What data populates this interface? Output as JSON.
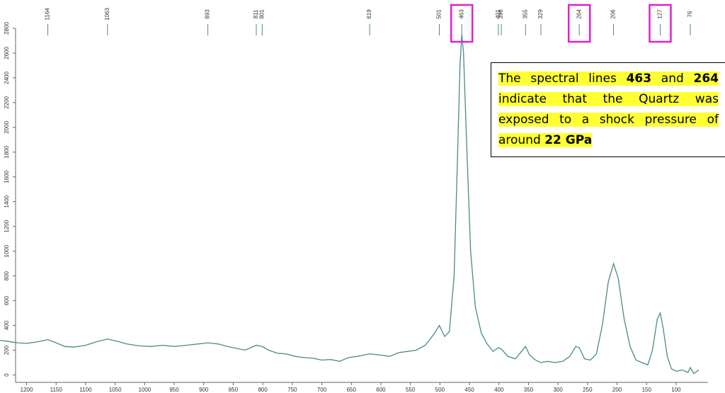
{
  "chart_data": {
    "type": "line",
    "x": [
      1245,
      1230,
      1215,
      1200,
      1185,
      1164,
      1150,
      1135,
      1120,
      1100,
      1080,
      1063,
      1045,
      1030,
      1010,
      990,
      970,
      950,
      930,
      910,
      893,
      875,
      860,
      845,
      830,
      811,
      801,
      790,
      775,
      760,
      745,
      730,
      715,
      700,
      685,
      670,
      655,
      640,
      619,
      600,
      585,
      570,
      555,
      540,
      525,
      510,
      501,
      492,
      484,
      476,
      470,
      466,
      463,
      460,
      455,
      448,
      440,
      430,
      420,
      410,
      401,
      396,
      385,
      372,
      362,
      355,
      348,
      338,
      329,
      318,
      305,
      292,
      280,
      270,
      264,
      255,
      245,
      235,
      225,
      215,
      206,
      198,
      188,
      178,
      168,
      158,
      148,
      140,
      132,
      127,
      122,
      115,
      108,
      100,
      90,
      80,
      76,
      70,
      62
    ],
    "series": [
      {
        "color": "#4a8a8a",
        "values": [
          280,
          270,
          260,
          255,
          265,
          285,
          260,
          230,
          225,
          240,
          270,
          290,
          270,
          250,
          235,
          230,
          240,
          230,
          240,
          250,
          260,
          250,
          230,
          215,
          200,
          240,
          230,
          200,
          175,
          170,
          150,
          140,
          135,
          120,
          125,
          110,
          140,
          150,
          170,
          160,
          150,
          180,
          190,
          200,
          240,
          330,
          400,
          310,
          350,
          800,
          1800,
          2500,
          2750,
          2600,
          1900,
          1000,
          550,
          340,
          250,
          190,
          220,
          210,
          150,
          130,
          190,
          230,
          160,
          120,
          100,
          110,
          100,
          110,
          150,
          230,
          220,
          130,
          120,
          170,
          400,
          750,
          900,
          780,
          450,
          230,
          120,
          100,
          80,
          200,
          450,
          500,
          380,
          150,
          50,
          30,
          40,
          20,
          60,
          10,
          40
        ]
      }
    ],
    "xlim": [
      1245,
      58
    ],
    "ylim": [
      -60,
      2800
    ],
    "xticks": [
      1200,
      1150,
      1100,
      1050,
      1000,
      950,
      900,
      850,
      800,
      750,
      700,
      650,
      600,
      550,
      500,
      450,
      400,
      350,
      300,
      250,
      200,
      150,
      100
    ],
    "yticks": [
      0,
      200,
      400,
      600,
      800,
      1000,
      1200,
      1400,
      1600,
      1800,
      2000,
      2200,
      2400,
      2600,
      2800
    ],
    "peaks": [
      1164,
      1063,
      893,
      811,
      801,
      619,
      501,
      463,
      401,
      396,
      355,
      329,
      264,
      206,
      127,
      76
    ],
    "boxed": [
      false,
      false,
      false,
      false,
      false,
      false,
      false,
      true,
      false,
      false,
      false,
      false,
      true,
      false,
      true,
      false
    ],
    "box_color": "#e020d0",
    "annotation": [
      {
        "text": "The spectral lines ",
        "bold": false
      },
      {
        "text": "463",
        "bold": true
      },
      {
        "text": " and ",
        "bold": false
      },
      {
        "text": "264",
        "bold": true
      },
      {
        "text": " indicate that the Quartz was exposed to a shock pressure of around ",
        "bold": false
      },
      {
        "text": "22 GPa",
        "bold": true
      }
    ]
  }
}
